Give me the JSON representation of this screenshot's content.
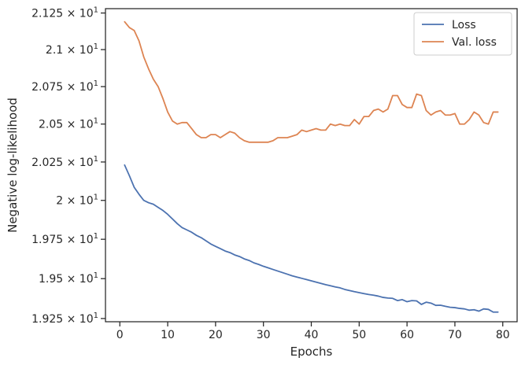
{
  "chart_data": {
    "type": "line",
    "xlabel": "Epochs",
    "ylabel": "Negative log-likelihood",
    "xlim": [
      -3,
      83
    ],
    "ylim": [
      19.23,
      21.28
    ],
    "log_y": true,
    "grid": false,
    "legend_position": "top-right",
    "x_ticks": [
      0,
      10,
      20,
      30,
      40,
      50,
      60,
      70,
      80
    ],
    "y_ticks": [
      {
        "value": 19.25,
        "mantissa": "1.925"
      },
      {
        "value": 19.5,
        "mantissa": "1.95"
      },
      {
        "value": 19.75,
        "mantissa": "1.975"
      },
      {
        "value": 20.0,
        "mantissa": "2"
      },
      {
        "value": 20.25,
        "mantissa": "2.025"
      },
      {
        "value": 20.5,
        "mantissa": "2.05"
      },
      {
        "value": 20.75,
        "mantissa": "2.075"
      },
      {
        "value": 21.0,
        "mantissa": "2.1"
      },
      {
        "value": 21.25,
        "mantissa": "2.125"
      }
    ],
    "y_tick_suffix": "× 10",
    "y_tick_exponent": "1",
    "x": [
      1,
      2,
      3,
      4,
      5,
      6,
      7,
      8,
      9,
      10,
      11,
      12,
      13,
      14,
      15,
      16,
      17,
      18,
      19,
      20,
      21,
      22,
      23,
      24,
      25,
      26,
      27,
      28,
      29,
      30,
      31,
      32,
      33,
      34,
      35,
      36,
      37,
      38,
      39,
      40,
      41,
      42,
      43,
      44,
      45,
      46,
      47,
      48,
      49,
      50,
      51,
      52,
      53,
      54,
      55,
      56,
      57,
      58,
      59,
      60,
      61,
      62,
      63,
      64,
      65,
      66,
      67,
      68,
      69,
      70,
      71,
      72,
      73,
      74,
      75,
      76,
      77,
      78,
      79
    ],
    "series": [
      {
        "name": "Loss",
        "color": "#4c72b0",
        "values": [
          20.23,
          20.16,
          20.085,
          20.04,
          20.0,
          19.985,
          19.975,
          19.955,
          19.935,
          19.91,
          19.88,
          19.85,
          19.825,
          19.81,
          19.795,
          19.775,
          19.76,
          19.74,
          19.72,
          19.705,
          19.69,
          19.675,
          19.665,
          19.65,
          19.64,
          19.625,
          19.615,
          19.6,
          19.59,
          19.578,
          19.568,
          19.558,
          19.548,
          19.538,
          19.528,
          19.518,
          19.51,
          19.502,
          19.494,
          19.486,
          19.478,
          19.47,
          19.462,
          19.455,
          19.448,
          19.442,
          19.432,
          19.425,
          19.418,
          19.412,
          19.406,
          19.4,
          19.396,
          19.39,
          19.382,
          19.378,
          19.376,
          19.362,
          19.368,
          19.355,
          19.362,
          19.36,
          19.338,
          19.352,
          19.346,
          19.332,
          19.333,
          19.326,
          19.32,
          19.318,
          19.313,
          19.31,
          19.302,
          19.305,
          19.296,
          19.31,
          19.307,
          19.29,
          19.29
        ]
      },
      {
        "name": "Val. loss",
        "color": "#dd8452",
        "values": [
          21.19,
          21.15,
          21.13,
          21.06,
          20.95,
          20.87,
          20.8,
          20.75,
          20.67,
          20.58,
          20.52,
          20.5,
          20.51,
          20.51,
          20.47,
          20.43,
          20.41,
          20.41,
          20.43,
          20.43,
          20.41,
          20.43,
          20.45,
          20.44,
          20.41,
          20.39,
          20.38,
          20.38,
          20.38,
          20.38,
          20.38,
          20.39,
          20.41,
          20.41,
          20.41,
          20.42,
          20.43,
          20.46,
          20.45,
          20.46,
          20.47,
          20.46,
          20.46,
          20.5,
          20.49,
          20.5,
          20.49,
          20.49,
          20.53,
          20.5,
          20.55,
          20.55,
          20.59,
          20.6,
          20.58,
          20.6,
          20.69,
          20.69,
          20.63,
          20.61,
          20.61,
          20.7,
          20.69,
          20.59,
          20.56,
          20.58,
          20.59,
          20.56,
          20.56,
          20.57,
          20.5,
          20.5,
          20.53,
          20.58,
          20.56,
          20.51,
          20.5,
          20.58,
          20.58
        ]
      }
    ]
  }
}
